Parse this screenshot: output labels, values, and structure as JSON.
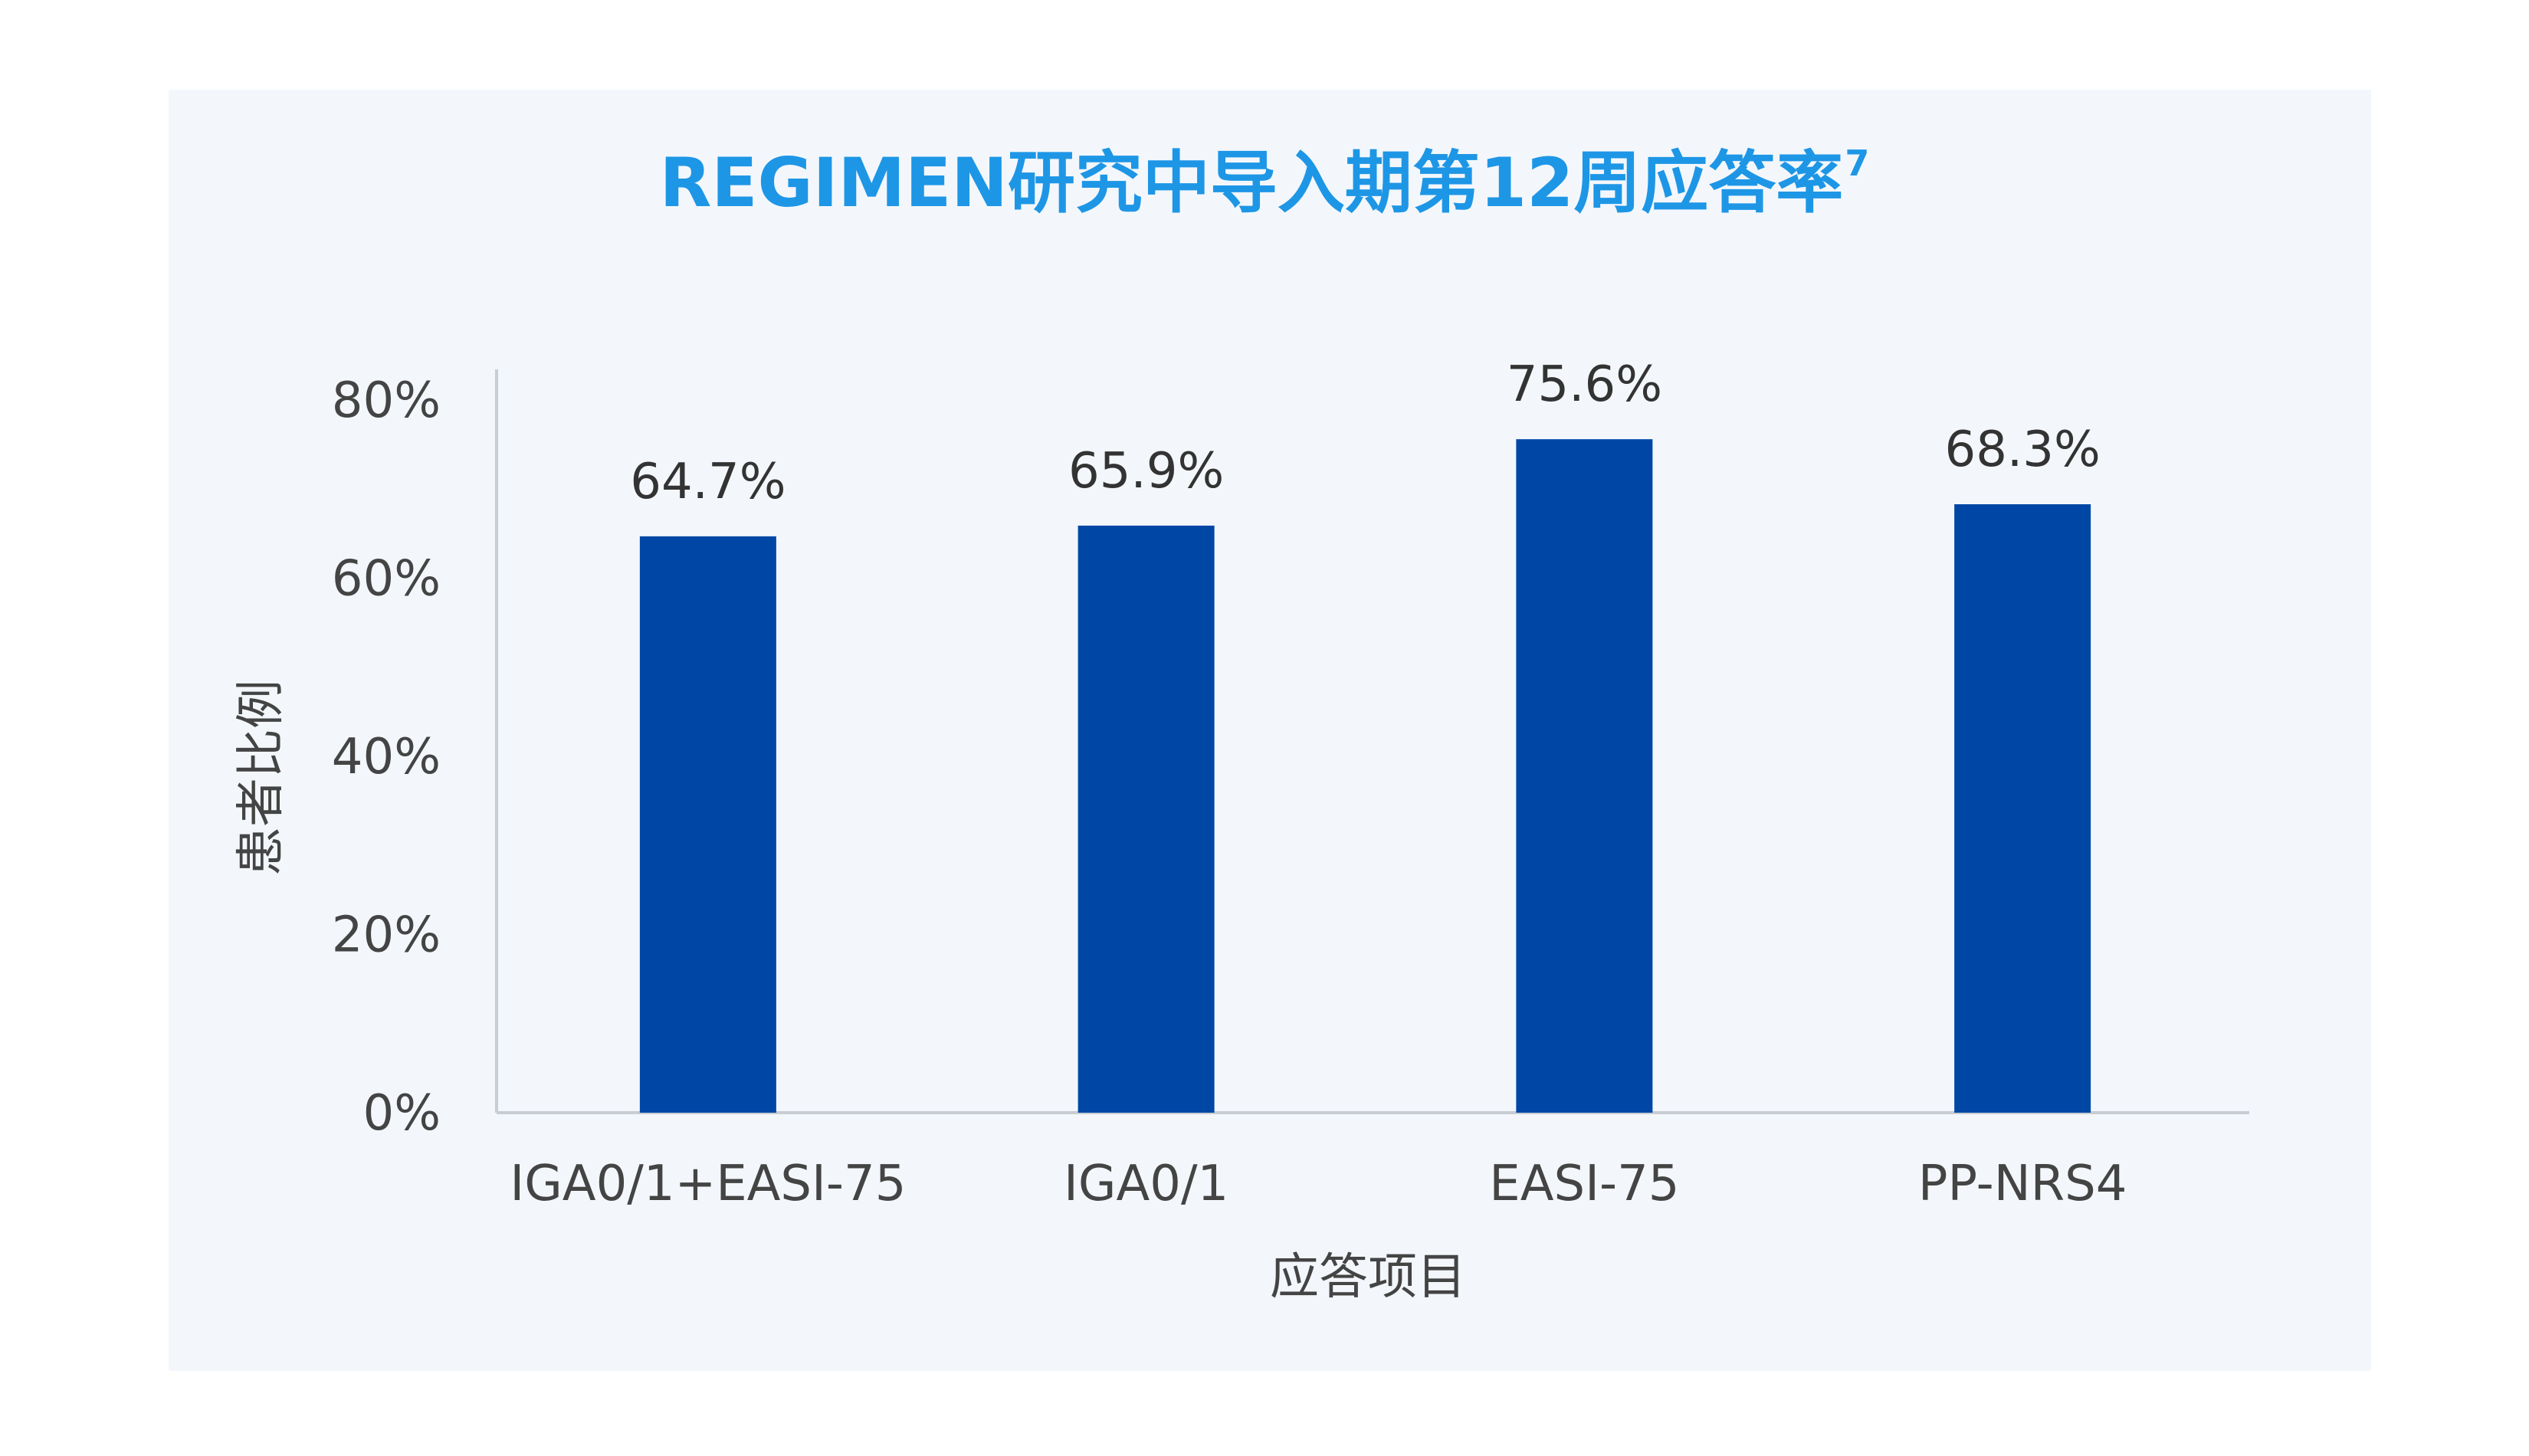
{
  "chart_data": {
    "type": "bar",
    "title": "REGIMEN研究中导入期第12周应答率",
    "title_superscript": "7",
    "categories": [
      "IGA0/1+EASI-75",
      "IGA0/1",
      "EASI-75",
      "PP-NRS4"
    ],
    "values": [
      64.7,
      65.9,
      75.6,
      68.3
    ],
    "value_labels": [
      "64.7%",
      "65.9%",
      "75.6%",
      "68.3%"
    ],
    "xlabel": "应答项目",
    "ylabel": "患者比例",
    "ylim": [
      0,
      80
    ],
    "yticks": [
      {
        "value": 0,
        "label": "0%"
      },
      {
        "value": 20,
        "label": "20%"
      },
      {
        "value": 40,
        "label": "40%"
      },
      {
        "value": 60,
        "label": "60%"
      },
      {
        "value": 80,
        "label": "80%"
      }
    ],
    "grid": false,
    "legend": "none",
    "colors": {
      "bar": "#0047a5",
      "title": "#1e96e6",
      "background": "#f3f7fb",
      "axis": "#c8cdd3"
    }
  }
}
